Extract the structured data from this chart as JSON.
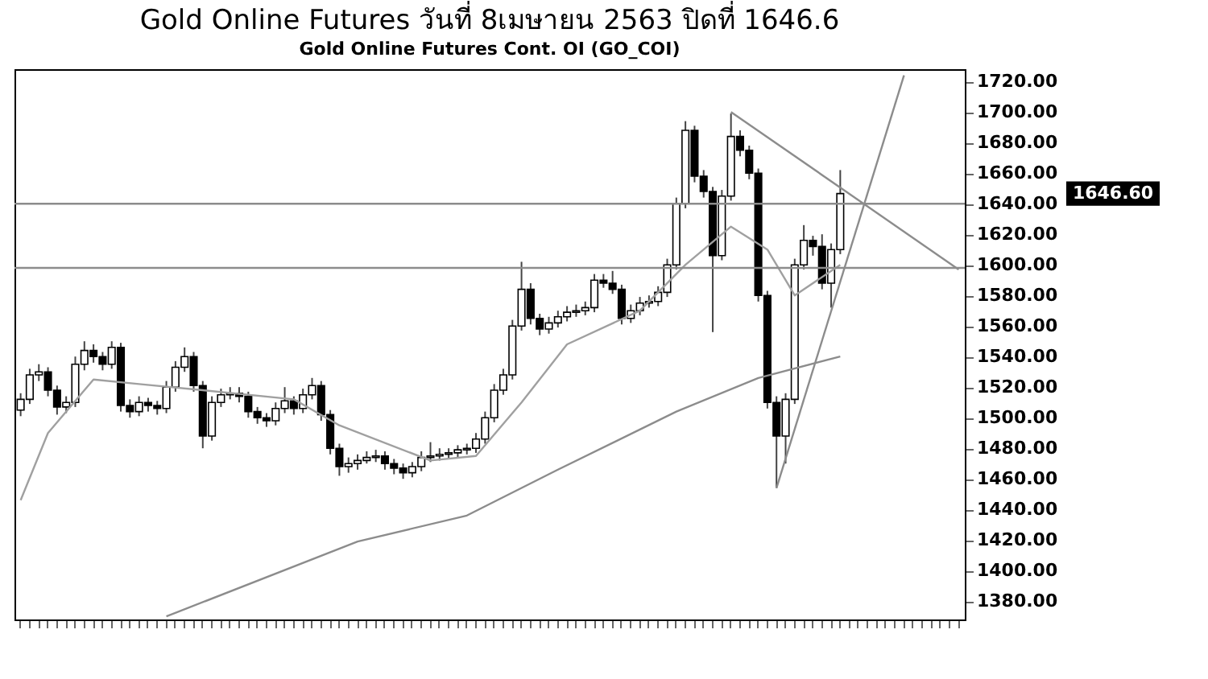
{
  "chart_data": {
    "type": "candlestick",
    "title": "Gold Online Futures วันที่   8เมษายน   2563 ปิดที่   1646.6",
    "subtitle": "Gold Online Futures Cont. OI (GO_COI)",
    "categories": [
      null,
      null,
      null,
      null,
      null,
      null,
      null,
      null,
      null,
      null,
      null,
      null,
      null,
      null,
      null,
      null,
      null,
      null,
      null,
      null,
      null,
      null,
      null,
      null,
      null,
      null,
      null,
      null,
      null,
      null,
      null,
      null,
      null,
      null,
      null,
      null,
      null,
      null,
      null,
      null,
      null,
      null,
      null,
      null,
      null,
      null,
      null,
      null,
      null,
      null,
      null,
      null,
      null,
      null,
      null,
      null,
      null,
      null,
      null,
      null,
      null,
      null,
      null,
      null,
      null,
      null,
      null,
      null,
      null,
      null,
      null,
      null,
      null,
      null,
      null,
      null,
      null,
      null,
      null,
      null,
      null,
      null,
      null,
      null,
      null,
      null,
      null,
      null,
      null,
      null,
      null,
      null,
      null,
      null,
      null,
      null,
      null,
      null,
      null,
      null,
      null,
      null,
      null,
      null
    ],
    "ohlc": [
      [
        1505,
        1516,
        1501,
        1512
      ],
      [
        1512,
        1532,
        1509,
        1528
      ],
      [
        1528,
        1535,
        1524,
        1530
      ],
      [
        1530,
        1533,
        1514,
        1518
      ],
      [
        1518,
        1521,
        1502,
        1507
      ],
      [
        1507,
        1514,
        1503,
        1510
      ],
      [
        1510,
        1540,
        1507,
        1535
      ],
      [
        1535,
        1550,
        1531,
        1544
      ],
      [
        1544,
        1548,
        1536,
        1540
      ],
      [
        1540,
        1543,
        1531,
        1535
      ],
      [
        1535,
        1550,
        1532,
        1546
      ],
      [
        1546,
        1549,
        1504,
        1508
      ],
      [
        1508,
        1512,
        1500,
        1504
      ],
      [
        1504,
        1514,
        1501,
        1510
      ],
      [
        1510,
        1513,
        1504,
        1508
      ],
      [
        1508,
        1511,
        1502,
        1506
      ],
      [
        1506,
        1524,
        1503,
        1520
      ],
      [
        1520,
        1537,
        1517,
        1533
      ],
      [
        1533,
        1546,
        1530,
        1540
      ],
      [
        1540,
        1543,
        1517,
        1521
      ],
      [
        1521,
        1524,
        1480,
        1488
      ],
      [
        1488,
        1514,
        1485,
        1510
      ],
      [
        1510,
        1519,
        1507,
        1515
      ],
      [
        1515,
        1520,
        1512,
        1516
      ],
      [
        1516,
        1520,
        1510,
        1514
      ],
      [
        1514,
        1517,
        1500,
        1504
      ],
      [
        1504,
        1507,
        1496,
        1500
      ],
      [
        1500,
        1503,
        1494,
        1498
      ],
      [
        1498,
        1510,
        1495,
        1506
      ],
      [
        1506,
        1520,
        1503,
        1511
      ],
      [
        1511,
        1514,
        1502,
        1506
      ],
      [
        1506,
        1519,
        1503,
        1515
      ],
      [
        1515,
        1526,
        1512,
        1521
      ],
      [
        1521,
        1524,
        1498,
        1502
      ],
      [
        1502,
        1505,
        1476,
        1480
      ],
      [
        1480,
        1483,
        1462,
        1468
      ],
      [
        1468,
        1474,
        1464,
        1470
      ],
      [
        1470,
        1476,
        1466,
        1472
      ],
      [
        1472,
        1478,
        1470,
        1474
      ],
      [
        1474,
        1479,
        1471,
        1475
      ],
      [
        1475,
        1478,
        1466,
        1470
      ],
      [
        1470,
        1473,
        1463,
        1467
      ],
      [
        1467,
        1470,
        1460,
        1464
      ],
      [
        1464,
        1471,
        1461,
        1468
      ],
      [
        1468,
        1478,
        1465,
        1474
      ],
      [
        1474,
        1484,
        1471,
        1475
      ],
      [
        1475,
        1480,
        1472,
        1476
      ],
      [
        1476,
        1480,
        1473,
        1477
      ],
      [
        1477,
        1482,
        1474,
        1479
      ],
      [
        1479,
        1483,
        1476,
        1480
      ],
      [
        1480,
        1490,
        1477,
        1486
      ],
      [
        1486,
        1504,
        1483,
        1500
      ],
      [
        1500,
        1522,
        1497,
        1518
      ],
      [
        1518,
        1532,
        1515,
        1528
      ],
      [
        1528,
        1564,
        1525,
        1560
      ],
      [
        1560,
        1602,
        1557,
        1584
      ],
      [
        1584,
        1588,
        1561,
        1565
      ],
      [
        1565,
        1568,
        1554,
        1558
      ],
      [
        1558,
        1566,
        1555,
        1562
      ],
      [
        1562,
        1570,
        1559,
        1566
      ],
      [
        1566,
        1573,
        1563,
        1569
      ],
      [
        1569,
        1574,
        1566,
        1570
      ],
      [
        1570,
        1576,
        1567,
        1572
      ],
      [
        1572,
        1594,
        1569,
        1590
      ],
      [
        1590,
        1594,
        1585,
        1588
      ],
      [
        1588,
        1596,
        1581,
        1584
      ],
      [
        1584,
        1587,
        1561,
        1565
      ],
      [
        1565,
        1574,
        1562,
        1570
      ],
      [
        1570,
        1579,
        1567,
        1575
      ],
      [
        1575,
        1580,
        1572,
        1576
      ],
      [
        1576,
        1586,
        1573,
        1582
      ],
      [
        1582,
        1604,
        1579,
        1600
      ],
      [
        1600,
        1644,
        1597,
        1640
      ],
      [
        1640,
        1694,
        1637,
        1688
      ],
      [
        1688,
        1691,
        1654,
        1658
      ],
      [
        1658,
        1662,
        1644,
        1648
      ],
      [
        1648,
        1651,
        1556,
        1606
      ],
      [
        1606,
        1649,
        1603,
        1645
      ],
      [
        1645,
        1699,
        1642,
        1684
      ],
      [
        1684,
        1688,
        1671,
        1675
      ],
      [
        1675,
        1678,
        1656,
        1660
      ],
      [
        1660,
        1663,
        1576,
        1580
      ],
      [
        1580,
        1583,
        1506,
        1510
      ],
      [
        1510,
        1514,
        1454,
        1488
      ],
      [
        1488,
        1516,
        1470,
        1512
      ],
      [
        1512,
        1604,
        1509,
        1600
      ],
      [
        1600,
        1626,
        1597,
        1616
      ],
      [
        1616,
        1619,
        1606,
        1612
      ],
      [
        1612,
        1620,
        1584,
        1588
      ],
      [
        1588,
        1614,
        1572,
        1610
      ],
      [
        1610,
        1662,
        1607,
        1646.6
      ],
      null,
      null,
      null,
      null,
      null,
      null,
      null,
      null,
      null,
      null,
      null,
      null,
      null
    ],
    "series": [
      {
        "type": "line",
        "color": "#8c8c8c",
        "values": [
          null,
          null,
          null,
          null,
          null,
          null,
          null,
          null,
          null,
          null,
          null,
          null,
          null,
          null,
          null,
          null,
          1370,
          null,
          null,
          null,
          null,
          null,
          null,
          null,
          null,
          null,
          null,
          null,
          null,
          null,
          null,
          null,
          null,
          null,
          null,
          null,
          null,
          1419,
          null,
          null,
          null,
          null,
          null,
          null,
          null,
          null,
          null,
          null,
          null,
          1436,
          null,
          null,
          null,
          null,
          null,
          null,
          null,
          null,
          null,
          1466,
          null,
          null,
          null,
          null,
          null,
          null,
          null,
          null,
          null,
          null,
          null,
          null,
          1504,
          null,
          null,
          null,
          null,
          null,
          null,
          null,
          null,
          1526,
          null,
          null,
          null,
          null,
          null,
          null,
          null,
          null,
          1540,
          null,
          null,
          null,
          null,
          null,
          null,
          null,
          null,
          null,
          null,
          null,
          null,
          null
        ]
      },
      {
        "type": "line",
        "color": "#a0a0a0",
        "values": [
          1446,
          null,
          null,
          1490,
          null,
          null,
          null,
          null,
          1525,
          null,
          null,
          null,
          null,
          1522,
          null,
          null,
          null,
          null,
          null,
          null,
          1518,
          null,
          null,
          null,
          null,
          null,
          null,
          null,
          null,
          null,
          1512,
          null,
          null,
          null,
          null,
          1495,
          null,
          null,
          null,
          null,
          null,
          null,
          null,
          null,
          null,
          1472,
          null,
          null,
          null,
          null,
          1475,
          null,
          null,
          null,
          null,
          1510,
          null,
          null,
          null,
          null,
          1548,
          null,
          null,
          null,
          null,
          null,
          null,
          null,
          1570,
          null,
          null,
          null,
          null,
          1600,
          null,
          null,
          null,
          null,
          1625,
          null,
          null,
          null,
          1610,
          null,
          null,
          1580,
          null,
          null,
          null,
          null,
          1600,
          null,
          null,
          null,
          null,
          null,
          null,
          null,
          null,
          null,
          null,
          null,
          null,
          null
        ]
      },
      {
        "type": "line",
        "color": "#8c8c8c",
        "values": [
          null,
          null,
          null,
          null,
          null,
          null,
          null,
          null,
          null,
          null,
          null,
          null,
          null,
          null,
          null,
          null,
          null,
          null,
          null,
          null,
          null,
          null,
          null,
          null,
          null,
          null,
          null,
          null,
          null,
          null,
          null,
          null,
          null,
          null,
          null,
          null,
          null,
          null,
          null,
          null,
          null,
          null,
          null,
          null,
          null,
          null,
          null,
          null,
          null,
          null,
          null,
          null,
          null,
          null,
          null,
          null,
          null,
          null,
          null,
          null,
          null,
          null,
          null,
          null,
          null,
          null,
          null,
          null,
          null,
          null,
          null,
          null,
          null,
          null,
          null,
          null,
          null,
          null,
          1700,
          null,
          null,
          null,
          null,
          null,
          null,
          null,
          null,
          null,
          null,
          null,
          null,
          null,
          null,
          null,
          null,
          null,
          null,
          null,
          null,
          null,
          null,
          null,
          null,
          1597
        ]
      },
      {
        "type": "line",
        "color": "#8c8c8c",
        "values": [
          null,
          null,
          null,
          null,
          null,
          null,
          null,
          null,
          null,
          null,
          null,
          null,
          null,
          null,
          null,
          null,
          null,
          null,
          null,
          null,
          null,
          null,
          null,
          null,
          null,
          null,
          null,
          null,
          null,
          null,
          null,
          null,
          null,
          null,
          null,
          null,
          null,
          null,
          null,
          null,
          null,
          null,
          null,
          null,
          null,
          null,
          null,
          null,
          null,
          null,
          null,
          null,
          null,
          null,
          null,
          null,
          null,
          null,
          null,
          null,
          null,
          null,
          null,
          null,
          null,
          null,
          null,
          null,
          null,
          null,
          null,
          null,
          null,
          null,
          null,
          null,
          null,
          null,
          null,
          null,
          null,
          null,
          null,
          1454,
          null,
          null,
          null,
          null,
          null,
          null,
          null,
          null,
          null,
          null,
          null,
          null,
          null,
          1724,
          null,
          null,
          null,
          null,
          null,
          null
        ]
      }
    ],
    "ref_lines": [
      {
        "axis": "y",
        "value": 1640,
        "color": "#8c8c8c"
      },
      {
        "axis": "y",
        "value": 1598,
        "color": "#8c8c8c"
      }
    ],
    "annotations": [
      "1646.60"
    ],
    "ylim": [
      1368,
      1728
    ],
    "yticks": [
      {
        "value": 1380,
        "label": "1380.00"
      },
      {
        "value": 1400,
        "label": "1400.00"
      },
      {
        "value": 1420,
        "label": "1420.00"
      },
      {
        "value": 1440,
        "label": "1440.00"
      },
      {
        "value": 1460,
        "label": "1460.00"
      },
      {
        "value": 1480,
        "label": "1480.00"
      },
      {
        "value": 1500,
        "label": "1500.00"
      },
      {
        "value": 1520,
        "label": "1520.00"
      },
      {
        "value": 1540,
        "label": "1540.00"
      },
      {
        "value": 1560,
        "label": "1560.00"
      },
      {
        "value": 1580,
        "label": "1580.00"
      },
      {
        "value": 1600,
        "label": "1600.00"
      },
      {
        "value": 1620,
        "label": "1620.00"
      },
      {
        "value": 1640,
        "label": "1640.00"
      },
      {
        "value": 1660,
        "label": "1660.00"
      },
      {
        "value": 1680,
        "label": "1680.00"
      },
      {
        "value": 1700,
        "label": "1700.00"
      },
      {
        "value": 1720,
        "label": "1720.00"
      }
    ],
    "tick_labels": "y"
  }
}
